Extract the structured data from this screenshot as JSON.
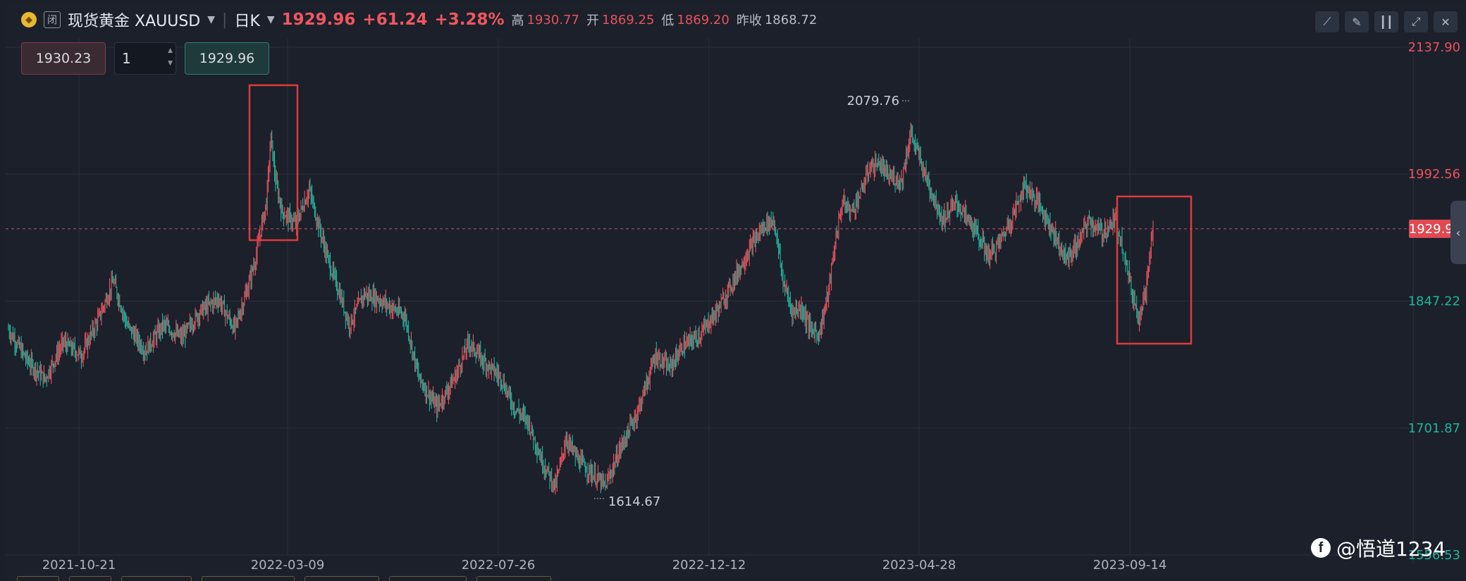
{
  "header": {
    "status_icon": "闭",
    "title": "现货黄金 XAUUSD",
    "period": "日K",
    "price": "1929.96",
    "change": "+61.24",
    "change_pct": "+3.28%",
    "high_label": "高",
    "high": "1930.77",
    "open_label": "开",
    "open": "1869.25",
    "low_label": "低",
    "low": "1869.20",
    "prev_close_label": "昨收",
    "prev_close": "1868.72"
  },
  "toolbar": {
    "icons": [
      "line-chart-icon",
      "pencil-icon",
      "candlestick-icon",
      "expand-icon",
      "close-icon"
    ]
  },
  "trade": {
    "sell_price": "1930.23",
    "quantity": "1",
    "buy_price": "1929.96"
  },
  "watermark": "@悟道1234",
  "colors": {
    "up": "#e9525b",
    "down": "#23b39c",
    "grid": "#2a303c",
    "box": "#e03a3a"
  },
  "chart_data": {
    "type": "bar",
    "y_axis_labels": [
      {
        "value": 2137.9,
        "text": "2137.90",
        "color": "#e9525b"
      },
      {
        "value": 1992.56,
        "text": "1992.56",
        "color": "#e9525b"
      },
      {
        "value": 1847.22,
        "text": "1847.22",
        "color": "#23b39c"
      },
      {
        "value": 1701.87,
        "text": "1701.87",
        "color": "#23b39c"
      },
      {
        "value": 1556.53,
        "text": "1556.53",
        "color": "#23b39c"
      }
    ],
    "current_price": {
      "value": 1929.96,
      "text": "1929.96"
    },
    "x_axis_labels": [
      "2021-10-21",
      "2022-03-09",
      "2022-07-26",
      "2022-12-12",
      "2023-04-28",
      "2023-09-14"
    ],
    "annotations": [
      {
        "text": "2079.76",
        "value": 2079.76,
        "type": "max"
      },
      {
        "text": "1614.67",
        "value": 1614.67,
        "type": "min"
      }
    ],
    "ylim": [
      1556.53,
      2137.9
    ],
    "anchors": [
      [
        0,
        1815
      ],
      [
        20,
        1780
      ],
      [
        40,
        1758
      ],
      [
        60,
        1800
      ],
      [
        80,
        1785
      ],
      [
        100,
        1830
      ],
      [
        115,
        1870
      ],
      [
        130,
        1820
      ],
      [
        150,
        1790
      ],
      [
        170,
        1820
      ],
      [
        190,
        1805
      ],
      [
        210,
        1835
      ],
      [
        230,
        1850
      ],
      [
        248,
        1815
      ],
      [
        262,
        1860
      ],
      [
        272,
        1900
      ],
      [
        278,
        1935
      ],
      [
        283,
        1960
      ],
      [
        288,
        2035
      ],
      [
        293,
        1985
      ],
      [
        300,
        1950
      ],
      [
        315,
        1935
      ],
      [
        330,
        1975
      ],
      [
        340,
        1935
      ],
      [
        352,
        1890
      ],
      [
        362,
        1860
      ],
      [
        374,
        1820
      ],
      [
        390,
        1855
      ],
      [
        405,
        1850
      ],
      [
        420,
        1840
      ],
      [
        435,
        1830
      ],
      [
        450,
        1760
      ],
      [
        470,
        1725
      ],
      [
        490,
        1760
      ],
      [
        505,
        1800
      ],
      [
        520,
        1780
      ],
      [
        540,
        1760
      ],
      [
        555,
        1725
      ],
      [
        570,
        1710
      ],
      [
        585,
        1665
      ],
      [
        600,
        1635
      ],
      [
        612,
        1690
      ],
      [
        625,
        1665
      ],
      [
        640,
        1650
      ],
      [
        655,
        1635
      ],
      [
        672,
        1680
      ],
      [
        690,
        1720
      ],
      [
        710,
        1785
      ],
      [
        725,
        1770
      ],
      [
        740,
        1795
      ],
      [
        760,
        1810
      ],
      [
        780,
        1840
      ],
      [
        800,
        1880
      ],
      [
        815,
        1910
      ],
      [
        830,
        1935
      ],
      [
        840,
        1940
      ],
      [
        850,
        1870
      ],
      [
        860,
        1835
      ],
      [
        870,
        1840
      ],
      [
        880,
        1815
      ],
      [
        890,
        1810
      ],
      [
        900,
        1860
      ],
      [
        908,
        1920
      ],
      [
        915,
        1960
      ],
      [
        925,
        1950
      ],
      [
        935,
        1970
      ],
      [
        945,
        2000
      ],
      [
        955,
        2005
      ],
      [
        965,
        1990
      ],
      [
        980,
        1985
      ],
      [
        990,
        2040
      ],
      [
        1000,
        2010
      ],
      [
        1010,
        1980
      ],
      [
        1025,
        1940
      ],
      [
        1040,
        1960
      ],
      [
        1060,
        1930
      ],
      [
        1075,
        1900
      ],
      [
        1085,
        1910
      ],
      [
        1100,
        1940
      ],
      [
        1115,
        1980
      ],
      [
        1130,
        1960
      ],
      [
        1145,
        1930
      ],
      [
        1160,
        1895
      ],
      [
        1172,
        1910
      ],
      [
        1185,
        1940
      ],
      [
        1200,
        1925
      ],
      [
        1215,
        1940
      ],
      [
        1225,
        1900
      ],
      [
        1232,
        1860
      ],
      [
        1240,
        1830
      ],
      [
        1248,
        1860
      ],
      [
        1256,
        1930
      ]
    ]
  }
}
